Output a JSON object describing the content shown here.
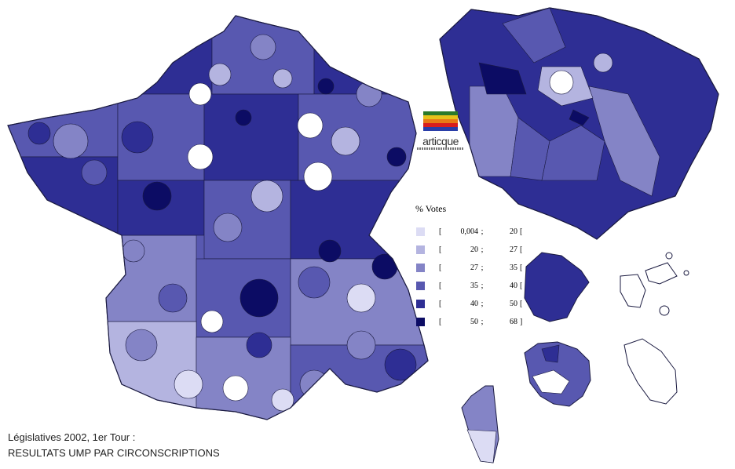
{
  "logo": {
    "text": "articque"
  },
  "legend": {
    "title": "% Votes",
    "bins": [
      {
        "open": "[",
        "low": "0,004",
        "sep": ";",
        "high": "20",
        "close": "[",
        "color": "#dcdcf4"
      },
      {
        "open": "[",
        "low": "20",
        "sep": ";",
        "high": "27",
        "close": "[",
        "color": "#b4b4e0"
      },
      {
        "open": "[",
        "low": "27",
        "sep": ";",
        "high": "35",
        "close": "[",
        "color": "#8484c6"
      },
      {
        "open": "[",
        "low": "35",
        "sep": ";",
        "high": "40",
        "close": "[",
        "color": "#5858b0"
      },
      {
        "open": "[",
        "low": "40",
        "sep": ";",
        "high": "50",
        "close": "[",
        "color": "#2e2e94"
      },
      {
        "open": "[",
        "low": "50",
        "sep": ";",
        "high": "68",
        "close": "]",
        "color": "#0c0c64"
      }
    ]
  },
  "caption": {
    "line1": "Législatives 2002, 1er Tour :",
    "line2": "RESULTATS UMP PAR CIRCONSCRIPTIONS"
  },
  "colors": {
    "border": "#1a1a40",
    "no_data": "#ffffff"
  }
}
